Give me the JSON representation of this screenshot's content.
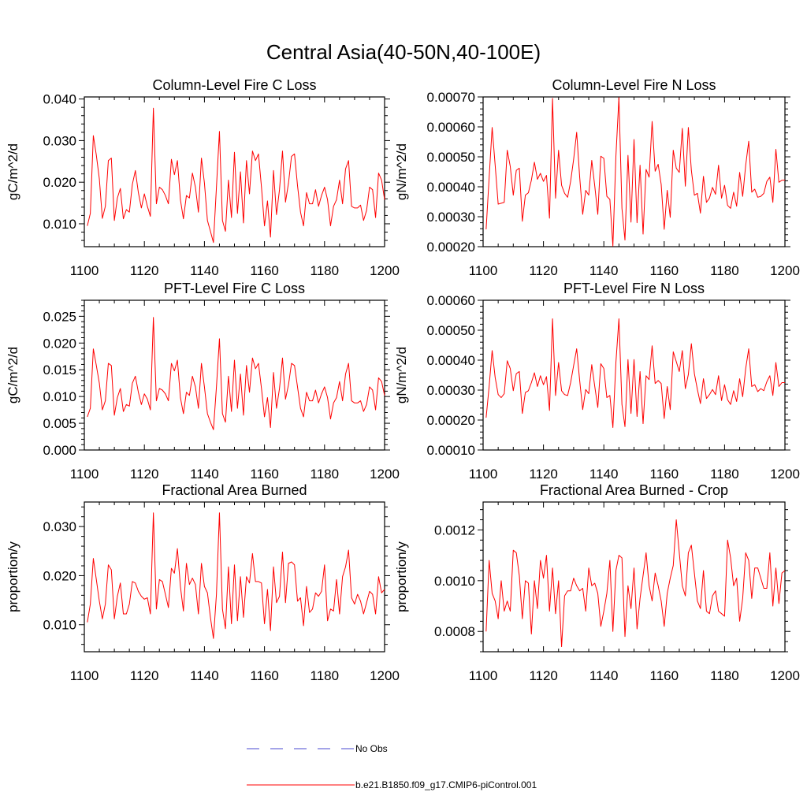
{
  "figure_title": "Central Asia(40-50N,40-100E)",
  "legend": {
    "obs_label": "No Obs",
    "model_label": "b.e21.B1850.f09_g17.CMIP6-piControl.001",
    "obs_color": "#4a4ad0",
    "model_color": "#ff0000"
  },
  "chart_data": [
    {
      "type": "line",
      "title": "Column-Level Fire C Loss",
      "ylabel": "gC/m^2/d",
      "xlim": [
        1100,
        1200
      ],
      "ylim": [
        0.0045,
        0.0405
      ],
      "xticks": [
        1100,
        1120,
        1140,
        1160,
        1180,
        1200
      ],
      "xtick_labels": [
        "1100",
        "1120",
        "1140",
        "1160",
        "1180",
        "1200"
      ],
      "yticks": [
        0.01,
        0.02,
        0.03,
        0.04
      ],
      "ytick_labels": [
        "0.010",
        "0.020",
        "0.030",
        "0.040"
      ],
      "series": [
        {
          "name": "b.e21.B1850.f09_g17.CMIP6-piControl.001",
          "x_start": 1101,
          "values": [
            0.0095,
            0.0125,
            0.0312,
            0.0265,
            0.0208,
            0.0113,
            0.0142,
            0.0252,
            0.0258,
            0.0108,
            0.0162,
            0.0185,
            0.0112,
            0.0134,
            0.0128,
            0.0195,
            0.0228,
            0.0175,
            0.0138,
            0.0172,
            0.0142,
            0.0118,
            0.0378,
            0.0148,
            0.0188,
            0.0182,
            0.0168,
            0.0148,
            0.0255,
            0.0218,
            0.0252,
            0.0158,
            0.0112,
            0.0168,
            0.0162,
            0.0222,
            0.0188,
            0.0128,
            0.0258,
            0.0198,
            0.0108,
            0.0082,
            0.0055,
            0.0188,
            0.0322,
            0.0108,
            0.0082,
            0.0205,
            0.0115,
            0.0272,
            0.0125,
            0.0225,
            0.0102,
            0.0252,
            0.0172,
            0.0275,
            0.0252,
            0.0268,
            0.0188,
            0.0095,
            0.0155,
            0.0068,
            0.0228,
            0.0122,
            0.0182,
            0.0275,
            0.0152,
            0.0198,
            0.0262,
            0.0268,
            0.0192,
            0.0128,
            0.0095,
            0.0175,
            0.0148,
            0.0148,
            0.0182,
            0.0142,
            0.0168,
            0.0188,
            0.0158,
            0.0095,
            0.0142,
            0.0158,
            0.0205,
            0.0148,
            0.0232,
            0.0252,
            0.0142,
            0.0138,
            0.0138,
            0.0145,
            0.0108,
            0.0132,
            0.0188,
            0.0182,
            0.0115,
            0.0222,
            0.0205,
            0.0158
          ]
        }
      ]
    },
    {
      "type": "line",
      "title": "Column-Level Fire N Loss",
      "ylabel": "gN/m^2/d",
      "xlim": [
        1100,
        1200
      ],
      "ylim": [
        0.0002,
        0.0007
      ],
      "xticks": [
        1100,
        1120,
        1140,
        1160,
        1180,
        1200
      ],
      "xtick_labels": [
        "1100",
        "1120",
        "1140",
        "1160",
        "1180",
        "1200"
      ],
      "yticks": [
        0.0002,
        0.0003,
        0.0004,
        0.0005,
        0.0006,
        0.0007
      ],
      "ytick_labels": [
        "0.00020",
        "0.00030",
        "0.00040",
        "0.00050",
        "0.00060",
        "0.00070"
      ],
      "series": [
        {
          "name": "b.e21.B1850.f09_g17.CMIP6-piControl.001",
          "x_start": 1101,
          "values": [
            0.000258,
            0.00043,
            0.000598,
            0.000472,
            0.000342,
            0.000345,
            0.000348,
            0.000522,
            0.000468,
            0.000372,
            0.000455,
            0.000462,
            0.000285,
            0.000372,
            0.00038,
            0.000422,
            0.000482,
            0.000425,
            0.000445,
            0.000418,
            0.000438,
            0.000295,
            0.000695,
            0.000362,
            0.000522,
            0.000405,
            0.000378,
            0.000365,
            0.000418,
            0.000492,
            0.000582,
            0.000432,
            0.000308,
            0.000388,
            0.000372,
            0.000488,
            0.000402,
            0.000308,
            0.000502,
            0.000495,
            0.000368,
            0.000358,
            0.000202,
            0.000502,
            0.000698,
            0.000328,
            0.000222,
            0.000505,
            0.000282,
            0.000558,
            0.00028,
            0.000472,
            0.000242,
            0.000458,
            0.000432,
            0.000618,
            0.000452,
            0.000475,
            0.000408,
            0.000258,
            0.000388,
            0.000298,
            0.000522,
            0.000462,
            0.000448,
            0.000595,
            0.000402,
            0.000598,
            0.000455,
            0.000372,
            0.000378,
            0.000312,
            0.000435,
            0.000348,
            0.000362,
            0.000398,
            0.000375,
            0.000472,
            0.000362,
            0.000405,
            0.000338,
            0.000328,
            0.000382,
            0.000335,
            0.000448,
            0.000368,
            0.000472,
            0.000552,
            0.000382,
            0.000392,
            0.000365,
            0.000368,
            0.000378,
            0.000418,
            0.000432,
            0.000348,
            0.000525,
            0.000415,
            0.000422,
            0.000422
          ]
        }
      ]
    },
    {
      "type": "line",
      "title": "PFT-Level Fire C Loss",
      "ylabel": "gC/m^2/d",
      "xlim": [
        1100,
        1200
      ],
      "ylim": [
        0.0,
        0.028
      ],
      "xticks": [
        1100,
        1120,
        1140,
        1160,
        1180,
        1200
      ],
      "xtick_labels": [
        "1100",
        "1120",
        "1140",
        "1160",
        "1180",
        "1200"
      ],
      "yticks": [
        0.0,
        0.005,
        0.01,
        0.015,
        0.02,
        0.025
      ],
      "ytick_labels": [
        "0.000",
        "0.005",
        "0.010",
        "0.015",
        "0.020",
        "0.025"
      ],
      "series": [
        {
          "name": "b.e21.B1850.f09_g17.CMIP6-piControl.001",
          "x_start": 1101,
          "values": [
            0.0062,
            0.0078,
            0.0189,
            0.0158,
            0.0125,
            0.0075,
            0.0092,
            0.0162,
            0.0158,
            0.0065,
            0.0098,
            0.0115,
            0.0072,
            0.0085,
            0.0082,
            0.0125,
            0.0138,
            0.0108,
            0.0085,
            0.0105,
            0.0095,
            0.0075,
            0.0248,
            0.0092,
            0.0115,
            0.0112,
            0.0105,
            0.0092,
            0.0162,
            0.0148,
            0.0168,
            0.0098,
            0.0068,
            0.0108,
            0.0102,
            0.0138,
            0.0118,
            0.0078,
            0.0162,
            0.0118,
            0.0068,
            0.0052,
            0.0038,
            0.0118,
            0.0208,
            0.0068,
            0.0052,
            0.0138,
            0.0072,
            0.0168,
            0.0078,
            0.0142,
            0.0065,
            0.0158,
            0.0108,
            0.0172,
            0.0152,
            0.0162,
            0.0115,
            0.0062,
            0.0098,
            0.0042,
            0.0145,
            0.0078,
            0.0115,
            0.0172,
            0.0095,
            0.0122,
            0.0162,
            0.0158,
            0.0118,
            0.0078,
            0.0062,
            0.0108,
            0.0092,
            0.0092,
            0.0112,
            0.0088,
            0.0105,
            0.0118,
            0.0098,
            0.0058,
            0.0088,
            0.0098,
            0.0128,
            0.0092,
            0.0142,
            0.0162,
            0.0092,
            0.0088,
            0.0088,
            0.0092,
            0.0072,
            0.0085,
            0.0118,
            0.0112,
            0.0075,
            0.0135,
            0.0128,
            0.0102
          ]
        }
      ]
    },
    {
      "type": "line",
      "title": "PFT-Level Fire N Loss",
      "ylabel": "gN/m^2/d",
      "xlim": [
        1100,
        1200
      ],
      "ylim": [
        0.0001,
        0.0006
      ],
      "xticks": [
        1100,
        1120,
        1140,
        1160,
        1180,
        1200
      ],
      "xtick_labels": [
        "1100",
        "1120",
        "1140",
        "1160",
        "1180",
        "1200"
      ],
      "yticks": [
        0.0001,
        0.0002,
        0.0003,
        0.0004,
        0.0005,
        0.0006
      ],
      "ytick_labels": [
        "0.00010",
        "0.00020",
        "0.00030",
        "0.00040",
        "0.00050",
        "0.00060"
      ],
      "series": [
        {
          "name": "b.e21.B1850.f09_g17.CMIP6-piControl.001",
          "x_start": 1101,
          "values": [
            0.000208,
            0.000312,
            0.000432,
            0.000342,
            0.000285,
            0.000275,
            0.000288,
            0.000398,
            0.000372,
            0.000298,
            0.000355,
            0.000362,
            0.000222,
            0.000292,
            0.000298,
            0.000325,
            0.000358,
            0.000312,
            0.000348,
            0.000318,
            0.000345,
            0.000232,
            0.000538,
            0.000282,
            0.000392,
            0.000298,
            0.000285,
            0.000282,
            0.000325,
            0.000382,
            0.000438,
            0.000332,
            0.000235,
            0.000302,
            0.000288,
            0.000385,
            0.000312,
            0.000242,
            0.000388,
            0.000372,
            0.000275,
            0.000282,
            0.000175,
            0.000392,
            0.000538,
            0.000252,
            0.000178,
            0.000402,
            0.000222,
            0.000402,
            0.000212,
            0.000362,
            0.000188,
            0.000348,
            0.000335,
            0.000448,
            0.000322,
            0.000332,
            0.000322,
            0.000205,
            0.000312,
            0.000235,
            0.000428,
            0.000395,
            0.000362,
            0.000432,
            0.000305,
            0.000352,
            0.000455,
            0.000355,
            0.000302,
            0.000255,
            0.000338,
            0.000272,
            0.000285,
            0.000302,
            0.000285,
            0.000348,
            0.000265,
            0.000318,
            0.000268,
            0.000252,
            0.000298,
            0.000262,
            0.000338,
            0.000278,
            0.000372,
            0.000438,
            0.000312,
            0.000318,
            0.000295,
            0.000305,
            0.000298,
            0.000328,
            0.000348,
            0.000282,
            0.000392,
            0.000312,
            0.000325,
            0.000325
          ]
        }
      ]
    },
    {
      "type": "line",
      "title": "Fractional Area Burned",
      "ylabel": "proportion/y",
      "xlim": [
        1100,
        1200
      ],
      "ylim": [
        0.0045,
        0.035
      ],
      "xticks": [
        1100,
        1120,
        1140,
        1160,
        1180,
        1200
      ],
      "xtick_labels": [
        "1100",
        "1120",
        "1140",
        "1160",
        "1180",
        "1200"
      ],
      "yticks": [
        0.01,
        0.02,
        0.03
      ],
      "ytick_labels": [
        "0.010",
        "0.020",
        "0.030"
      ],
      "series": [
        {
          "name": "b.e21.B1850.f09_g17.CMIP6-piControl.001",
          "x_start": 1101,
          "values": [
            0.0105,
            0.0142,
            0.0235,
            0.0192,
            0.0148,
            0.0112,
            0.0142,
            0.0222,
            0.0212,
            0.0112,
            0.0158,
            0.0185,
            0.0122,
            0.0122,
            0.0142,
            0.0188,
            0.0185,
            0.0168,
            0.0158,
            0.0152,
            0.0155,
            0.0122,
            0.0328,
            0.0132,
            0.0192,
            0.0188,
            0.0162,
            0.0135,
            0.0215,
            0.0205,
            0.0255,
            0.0178,
            0.0128,
            0.0225,
            0.0182,
            0.0195,
            0.0182,
            0.0122,
            0.0225,
            0.0178,
            0.0165,
            0.0115,
            0.0072,
            0.0162,
            0.0328,
            0.0132,
            0.0092,
            0.0218,
            0.0102,
            0.0222,
            0.0108,
            0.0198,
            0.0115,
            0.0198,
            0.0185,
            0.0245,
            0.0188,
            0.0188,
            0.0185,
            0.0102,
            0.0172,
            0.0088,
            0.0218,
            0.0145,
            0.0158,
            0.0248,
            0.0145,
            0.0225,
            0.0228,
            0.0222,
            0.0148,
            0.0155,
            0.0098,
            0.0178,
            0.0125,
            0.0132,
            0.0165,
            0.0158,
            0.0168,
            0.0222,
            0.0108,
            0.0132,
            0.0128,
            0.0192,
            0.0122,
            0.0198,
            0.0218,
            0.0252,
            0.0155,
            0.0142,
            0.0162,
            0.0148,
            0.0122,
            0.0145,
            0.0168,
            0.0162,
            0.0122,
            0.0198,
            0.0165,
            0.0172
          ]
        }
      ]
    },
    {
      "type": "line",
      "title": "Fractional Area Burned - Crop",
      "ylabel": "proportion/y",
      "xlim": [
        1100,
        1200
      ],
      "ylim": [
        0.00072,
        0.00131
      ],
      "xticks": [
        1100,
        1120,
        1140,
        1160,
        1180,
        1200
      ],
      "xtick_labels": [
        "1100",
        "1120",
        "1140",
        "1160",
        "1180",
        "1200"
      ],
      "yticks": [
        0.0008,
        0.001,
        0.0012
      ],
      "ytick_labels": [
        "0.0008",
        "0.0010",
        "0.0012"
      ],
      "series": [
        {
          "name": "b.e21.B1850.f09_g17.CMIP6-piControl.001",
          "x_start": 1101,
          "values": [
            0.0008,
            0.00108,
            0.00095,
            0.00092,
            0.00085,
            0.001,
            0.00088,
            0.00092,
            0.00088,
            0.00112,
            0.00111,
            0.00102,
            0.00085,
            0.001,
            0.00099,
            0.00079,
            0.001,
            0.00089,
            0.00108,
            0.00101,
            0.0011,
            0.00088,
            0.00105,
            0.00087,
            0.001,
            0.00074,
            0.00094,
            0.00096,
            0.00096,
            0.00101,
            0.00098,
            0.00096,
            0.00097,
            0.00088,
            0.00105,
            0.00098,
            0.00099,
            0.00095,
            0.00082,
            0.00088,
            0.00095,
            0.00108,
            0.0008,
            0.00104,
            0.0011,
            0.00109,
            0.00078,
            0.00098,
            0.00089,
            0.00105,
            0.00081,
            0.00093,
            0.00102,
            0.00111,
            0.00098,
            0.00092,
            0.00103,
            0.00098,
            0.00092,
            0.00082,
            0.00095,
            0.00101,
            0.00106,
            0.00124,
            0.00111,
            0.00098,
            0.00094,
            0.00111,
            0.00114,
            0.00103,
            0.00092,
            0.00089,
            0.00104,
            0.00088,
            0.00087,
            0.00094,
            0.00096,
            0.00088,
            0.00087,
            0.00086,
            0.00116,
            0.00109,
            0.00098,
            0.00101,
            0.00084,
            0.00093,
            0.00111,
            0.00108,
            0.00093,
            0.00105,
            0.00105,
            0.00101,
            0.00097,
            0.00097,
            0.00111,
            0.0009,
            0.00105,
            0.00091,
            0.00103,
            0.00104
          ]
        }
      ]
    }
  ]
}
